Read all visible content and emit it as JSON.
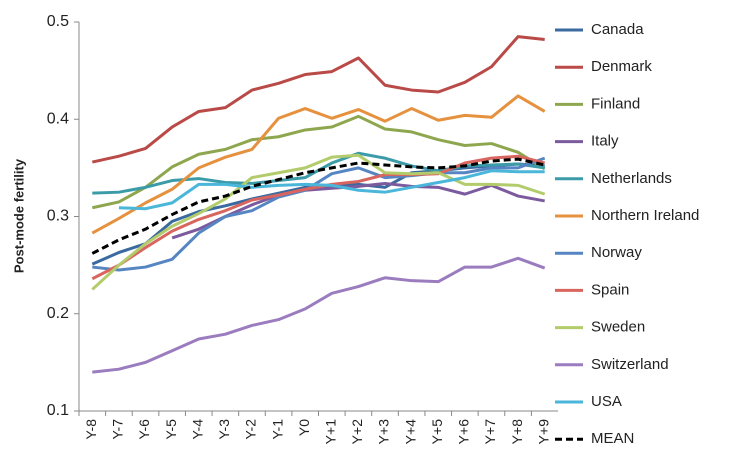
{
  "chart_data": {
    "type": "line",
    "y_label": "Post-mode fertility",
    "categories": [
      "Y-8",
      "Y-7",
      "Y-6",
      "Y-5",
      "Y-4",
      "Y-3",
      "Y-2",
      "Y-1",
      "Y0",
      "Y+1",
      "Y+2",
      "Y+3",
      "Y+4",
      "Y+5",
      "Y+6",
      "Y+7",
      "Y+8",
      "Y+9"
    ],
    "ylim": [
      0.1,
      0.5
    ],
    "yticks": [
      0.1,
      0.2,
      0.3,
      0.4,
      0.5
    ],
    "grid": false,
    "legend": "right",
    "series": [
      {
        "name": "Canada",
        "color": "#3a6aa0",
        "values": [
          0.251,
          0.263,
          0.272,
          0.295,
          0.305,
          0.311,
          0.318,
          0.324,
          0.33,
          0.331,
          0.333,
          0.33,
          0.345,
          0.347,
          0.35,
          0.352,
          0.354,
          0.352
        ]
      },
      {
        "name": "Denmark",
        "color": "#b94a47",
        "values": [
          0.356,
          0.362,
          0.37,
          0.392,
          0.408,
          0.412,
          0.43,
          0.437,
          0.446,
          0.449,
          0.463,
          0.435,
          0.43,
          0.428,
          0.438,
          0.454,
          0.485,
          0.482
        ]
      },
      {
        "name": "Finland",
        "color": "#8ea74f",
        "values": [
          0.309,
          0.315,
          0.33,
          0.351,
          0.364,
          0.369,
          0.379,
          0.382,
          0.389,
          0.392,
          0.403,
          0.39,
          0.387,
          0.379,
          0.373,
          0.375,
          0.366,
          0.349
        ]
      },
      {
        "name": "Italy",
        "color": "#7c5a9e",
        "values": [
          null,
          null,
          null,
          0.278,
          0.287,
          0.3,
          0.312,
          0.322,
          0.327,
          0.329,
          0.331,
          0.334,
          0.331,
          0.33,
          0.323,
          0.332,
          0.321,
          0.316
        ]
      },
      {
        "name": "Netherlands",
        "color": "#3b9ba8",
        "values": [
          0.324,
          0.325,
          0.33,
          0.337,
          0.339,
          0.335,
          0.334,
          0.337,
          0.34,
          0.355,
          0.365,
          0.36,
          0.352,
          0.347,
          0.352,
          0.353,
          0.354,
          0.35
        ]
      },
      {
        "name": "Northern Ireland",
        "color": "#e5913e",
        "values": [
          0.283,
          0.298,
          0.314,
          0.328,
          0.35,
          0.361,
          0.369,
          0.401,
          0.411,
          0.401,
          0.41,
          0.398,
          0.411,
          0.399,
          0.404,
          0.402,
          0.424,
          0.408
        ]
      },
      {
        "name": "Norway",
        "color": "#5585c2",
        "values": [
          0.248,
          0.245,
          0.248,
          0.256,
          0.283,
          0.3,
          0.306,
          0.32,
          0.327,
          0.344,
          0.35,
          0.34,
          0.342,
          0.345,
          0.345,
          0.35,
          0.35,
          0.36
        ]
      },
      {
        "name": "Spain",
        "color": "#d9655f",
        "values": [
          0.236,
          0.25,
          0.268,
          0.285,
          0.297,
          0.306,
          0.317,
          0.322,
          0.328,
          0.333,
          0.336,
          0.343,
          0.343,
          0.344,
          0.355,
          0.36,
          0.362,
          0.355
        ]
      },
      {
        "name": "Sweden",
        "color": "#b2cc6c",
        "values": [
          0.225,
          0.25,
          0.272,
          0.29,
          0.303,
          0.318,
          0.34,
          0.345,
          0.35,
          0.361,
          0.363,
          0.345,
          0.344,
          0.345,
          0.333,
          0.333,
          0.332,
          0.323
        ]
      },
      {
        "name": "Switzerland",
        "color": "#9a7cbf",
        "values": [
          0.14,
          0.143,
          0.15,
          0.162,
          0.174,
          0.179,
          0.188,
          0.194,
          0.205,
          0.221,
          0.228,
          0.237,
          0.234,
          0.233,
          0.248,
          0.248,
          0.257,
          0.247
        ]
      },
      {
        "name": "USA",
        "color": "#4ab6d9",
        "values": [
          null,
          0.309,
          0.308,
          0.314,
          0.333,
          0.333,
          0.33,
          0.332,
          0.333,
          0.332,
          0.327,
          0.325,
          0.33,
          0.335,
          0.34,
          0.347,
          0.346,
          0.346
        ]
      },
      {
        "name": "MEAN",
        "color": "#000000",
        "dashed": true,
        "values": [
          0.262,
          0.276,
          0.287,
          0.302,
          0.315,
          0.321,
          0.331,
          0.338,
          0.345,
          0.35,
          0.355,
          0.353,
          0.351,
          0.35,
          0.352,
          0.357,
          0.359,
          0.353
        ]
      }
    ]
  }
}
